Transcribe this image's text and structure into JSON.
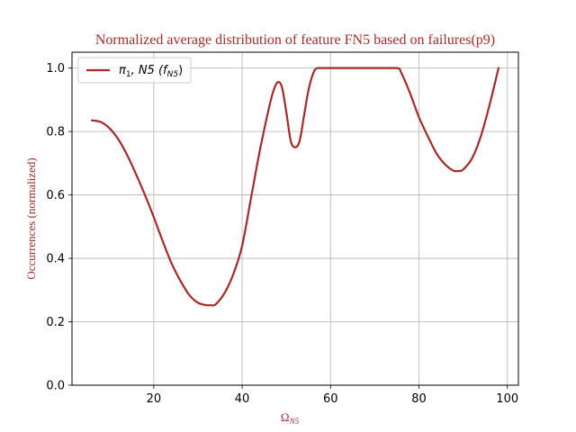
{
  "chart_data": {
    "type": "line",
    "title": "Normalized average distribution of feature FN5 based on failures(p9)",
    "xlabel": {
      "base": "Ω",
      "sub": "N5"
    },
    "ylabel": "Occurrences (normalized)",
    "xlim": [
      1.5,
      102.5
    ],
    "ylim": [
      0.0,
      1.05
    ],
    "xticks": [
      20,
      40,
      60,
      80,
      100
    ],
    "yticks": [
      0.0,
      0.2,
      0.4,
      0.6,
      0.8,
      1.0
    ],
    "xtick_labels": [
      "20",
      "40",
      "60",
      "80",
      "100"
    ],
    "ytick_labels": [
      "0.0",
      "0.2",
      "0.4",
      "0.6",
      "0.8",
      "1.0"
    ],
    "grid": true,
    "legend_position": "upper-left",
    "colors": {
      "series": "#a52a2a",
      "title": "#a52a2a",
      "axis": "#000000",
      "grid": "#b0b0b0"
    },
    "series": [
      {
        "name": "π1, N5 (fN5)",
        "legend": {
          "pi": "π",
          "pi_sub": "1",
          "mid": ", N5 (",
          "f": "f",
          "f_sub": "N5",
          "close": ")"
        },
        "x": [
          6,
          8,
          10,
          12,
          14,
          16,
          18,
          20,
          22,
          24,
          26,
          28,
          30,
          32,
          33,
          34,
          36,
          38,
          40,
          42,
          44,
          46,
          47,
          48,
          49,
          50,
          51,
          52,
          53,
          54,
          55,
          56,
          57,
          60,
          65,
          70,
          75,
          76,
          78,
          80,
          82,
          84,
          86,
          88,
          89,
          90,
          92,
          94,
          96,
          98
        ],
        "y": [
          0.835,
          0.83,
          0.81,
          0.775,
          0.725,
          0.665,
          0.6,
          0.53,
          0.455,
          0.385,
          0.33,
          0.285,
          0.26,
          0.252,
          0.252,
          0.255,
          0.29,
          0.35,
          0.44,
          0.59,
          0.74,
          0.87,
          0.925,
          0.955,
          0.94,
          0.86,
          0.77,
          0.75,
          0.77,
          0.85,
          0.93,
          0.98,
          1.0,
          1.0,
          1.0,
          1.0,
          1.0,
          0.985,
          0.92,
          0.845,
          0.785,
          0.73,
          0.695,
          0.675,
          0.675,
          0.68,
          0.715,
          0.785,
          0.885,
          1.0
        ]
      }
    ]
  }
}
